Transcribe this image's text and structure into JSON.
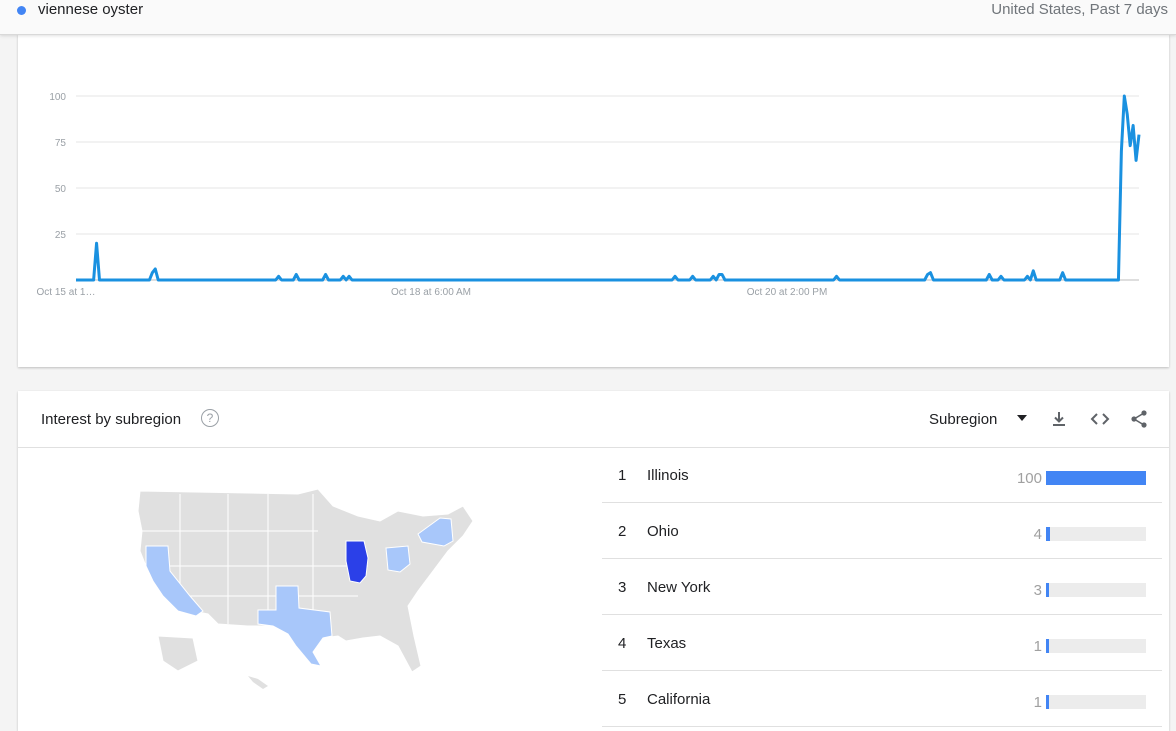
{
  "topbar": {
    "term": "viennese oyster",
    "scope": "United States, Past 7 days"
  },
  "colors": {
    "accent": "#4285f4",
    "line": "#1a91e0",
    "map_dark": "#2b40e8",
    "map_light": "#a8c7fa",
    "map_gray": "#e0e0e0"
  },
  "chart_data": {
    "type": "line",
    "y_ticks": [
      "100",
      "75",
      "50",
      "25"
    ],
    "x_ticks": [
      "Oct 15 at 1…",
      "Oct 18 at 6:00 AM",
      "Oct 20 at 2:00 PM"
    ],
    "ylim": [
      0,
      100
    ],
    "grid": true,
    "values": [
      0,
      0,
      0,
      0,
      0,
      0,
      0,
      20,
      0,
      0,
      0,
      0,
      0,
      0,
      0,
      0,
      0,
      0,
      0,
      0,
      0,
      0,
      0,
      0,
      0,
      0,
      4,
      6,
      0,
      0,
      0,
      0,
      0,
      0,
      0,
      0,
      0,
      0,
      0,
      0,
      0,
      0,
      0,
      0,
      0,
      0,
      0,
      0,
      0,
      0,
      0,
      0,
      0,
      0,
      0,
      0,
      0,
      0,
      0,
      0,
      0,
      0,
      0,
      0,
      0,
      0,
      0,
      0,
      0,
      2,
      0,
      0,
      0,
      0,
      0,
      3,
      0,
      0,
      0,
      0,
      0,
      0,
      0,
      0,
      0,
      3,
      0,
      0,
      0,
      0,
      0,
      2,
      0,
      2,
      0,
      0,
      0,
      0,
      0,
      0,
      0,
      0,
      0,
      0,
      0,
      0,
      0,
      0,
      0,
      0,
      0,
      0,
      0,
      0,
      0,
      0,
      0,
      0,
      0,
      0,
      0,
      0,
      0,
      0,
      0,
      0,
      0,
      0,
      0,
      0,
      0,
      0,
      0,
      0,
      0,
      0,
      0,
      0,
      0,
      0,
      0,
      0,
      0,
      0,
      0,
      0,
      0,
      0,
      0,
      0,
      0,
      0,
      0,
      0,
      0,
      0,
      0,
      0,
      0,
      0,
      0,
      0,
      0,
      0,
      0,
      0,
      0,
      0,
      0,
      0,
      0,
      0,
      0,
      0,
      0,
      0,
      0,
      0,
      0,
      0,
      0,
      0,
      0,
      0,
      0,
      0,
      0,
      0,
      0,
      0,
      0,
      0,
      0,
      0,
      0,
      0,
      0,
      0,
      0,
      0,
      0,
      0,
      0,
      0,
      2,
      0,
      0,
      0,
      0,
      0,
      2,
      0,
      0,
      0,
      0,
      0,
      0,
      2,
      0,
      3,
      3,
      0,
      0,
      0,
      0,
      0,
      0,
      0,
      0,
      0,
      0,
      0,
      0,
      0,
      0,
      0,
      0,
      0,
      0,
      0,
      0,
      0,
      0,
      0,
      0,
      0,
      0,
      0,
      0,
      0,
      0,
      0,
      0,
      0,
      0,
      0,
      0,
      0,
      0,
      2,
      0,
      0,
      0,
      0,
      0,
      0,
      0,
      0,
      0,
      0,
      0,
      0,
      0,
      0,
      0,
      0,
      0,
      0,
      0,
      0,
      0,
      0,
      0,
      0,
      0,
      0,
      0,
      0,
      0,
      0,
      3,
      4,
      0,
      0,
      0,
      0,
      0,
      0,
      0,
      0,
      0,
      0,
      0,
      0,
      0,
      0,
      0,
      0,
      0,
      0,
      0,
      3,
      0,
      0,
      0,
      2,
      0,
      0,
      0,
      0,
      0,
      0,
      0,
      0,
      2,
      0,
      5,
      0,
      0,
      0,
      0,
      0,
      0,
      0,
      0,
      0,
      4,
      0,
      0,
      0,
      0,
      0,
      0,
      0,
      0,
      0,
      0,
      0,
      0,
      0,
      0,
      0,
      0,
      0,
      0,
      0,
      70,
      100,
      90,
      73,
      84,
      65,
      79
    ]
  },
  "region": {
    "title": "Interest by subregion",
    "selector": "Subregion",
    "help_glyph": "?",
    "rankings": [
      {
        "rank": "1",
        "name": "Illinois",
        "value": "100",
        "level": 100
      },
      {
        "rank": "2",
        "name": "Ohio",
        "value": "4",
        "level": 4
      },
      {
        "rank": "3",
        "name": "New York",
        "value": "3",
        "level": 3
      },
      {
        "rank": "4",
        "name": "Texas",
        "value": "1",
        "level": 1
      },
      {
        "rank": "5",
        "name": "California",
        "value": "1",
        "level": 1
      }
    ]
  }
}
